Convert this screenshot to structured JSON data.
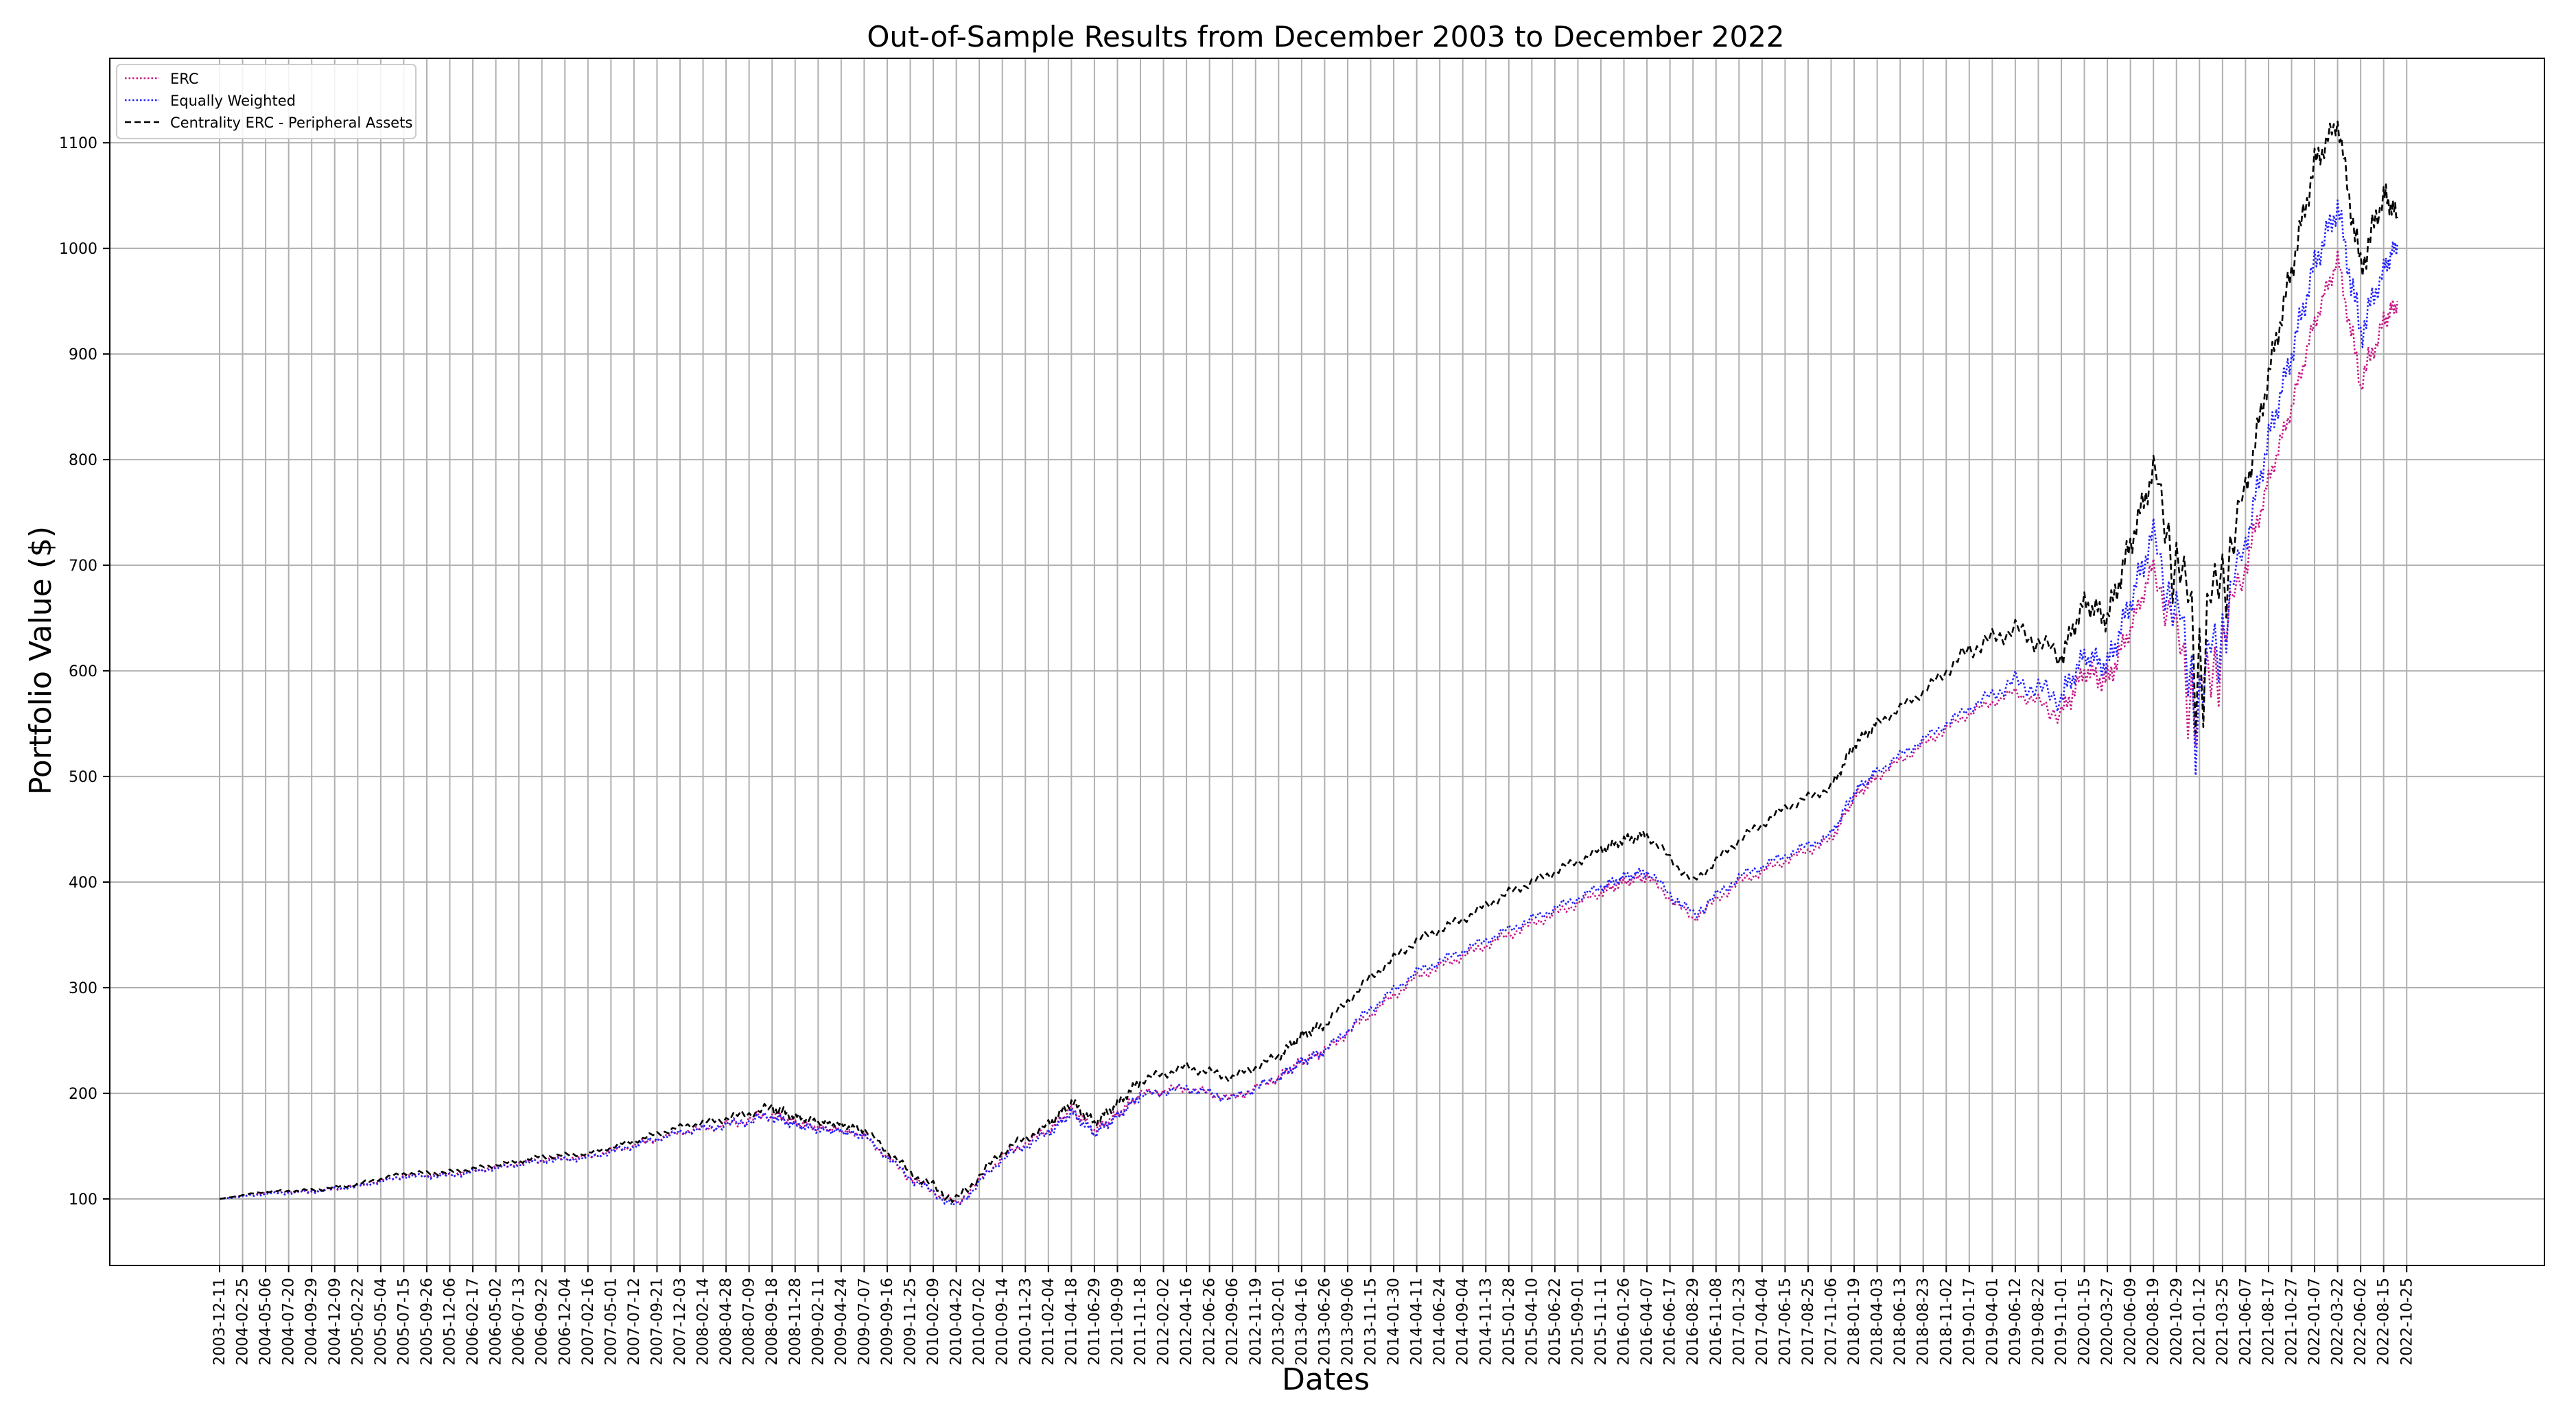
{
  "chart_data": {
    "type": "line",
    "title": "Out-of-Sample Results from December 2003 to December 2022",
    "xlabel": "Dates",
    "ylabel": "Portfolio Value ($)",
    "ylim": [
      37,
      1180
    ],
    "yticks": [
      100,
      200,
      300,
      400,
      500,
      600,
      700,
      800,
      900,
      1000,
      1100
    ],
    "grid": true,
    "legend_position": "top-left",
    "x_tick_labels": [
      "2003-12-11",
      "2004-02-25",
      "2004-05-06",
      "2004-07-20",
      "2004-09-29",
      "2004-12-09",
      "2005-02-22",
      "2005-05-04",
      "2005-07-15",
      "2005-09-26",
      "2005-12-06",
      "2006-02-17",
      "2006-05-02",
      "2006-07-13",
      "2006-09-22",
      "2006-12-04",
      "2007-02-16",
      "2007-05-01",
      "2007-07-12",
      "2007-09-21",
      "2007-12-03",
      "2008-02-14",
      "2008-04-28",
      "2008-07-09",
      "2008-09-18",
      "2008-11-28",
      "2009-02-11",
      "2009-04-24",
      "2009-07-07",
      "2009-09-16",
      "2009-11-25",
      "2010-02-09",
      "2010-04-22",
      "2010-07-02",
      "2010-09-14",
      "2010-11-23",
      "2011-02-04",
      "2011-04-18",
      "2011-06-29",
      "2011-09-09",
      "2011-11-18",
      "2012-02-02",
      "2012-04-16",
      "2012-06-26",
      "2012-09-06",
      "2012-11-19",
      "2013-02-01",
      "2013-04-16",
      "2013-06-26",
      "2013-09-06",
      "2013-11-15",
      "2014-01-30",
      "2014-04-11",
      "2014-06-24",
      "2014-09-04",
      "2014-11-13",
      "2015-01-28",
      "2015-04-10",
      "2015-06-22",
      "2015-09-01",
      "2015-11-11",
      "2016-01-26",
      "2016-04-07",
      "2016-06-17",
      "2016-08-29",
      "2016-11-08",
      "2017-01-23",
      "2017-04-04",
      "2017-06-15",
      "2017-08-25",
      "2017-11-06",
      "2018-01-19",
      "2018-04-03",
      "2018-06-13",
      "2018-08-23",
      "2018-11-02",
      "2019-01-17",
      "2019-04-01",
      "2019-06-12",
      "2019-08-22",
      "2019-11-01",
      "2020-01-15",
      "2020-03-27",
      "2020-06-09",
      "2020-08-19",
      "2020-10-29",
      "2021-01-12",
      "2021-03-25",
      "2021-06-07",
      "2021-08-17",
      "2021-10-27",
      "2022-01-07",
      "2022-03-22",
      "2022-06-02",
      "2022-08-15",
      "2022-10-25"
    ],
    "x_index_range": [
      0,
      94.6
    ],
    "x_index": [
      0,
      2,
      4,
      6,
      8,
      10,
      12,
      14,
      16,
      18,
      20,
      22,
      24,
      25,
      26,
      27,
      28,
      30,
      32,
      34,
      36,
      37,
      38,
      39,
      40,
      42,
      44,
      46,
      47,
      48,
      50,
      52,
      54,
      56,
      58,
      60,
      61,
      62,
      64,
      66,
      68,
      70,
      71,
      72,
      74,
      76,
      78,
      80,
      81,
      82,
      83,
      84,
      86,
      88,
      89,
      90,
      91,
      92,
      93,
      94,
      94.6
    ],
    "series": [
      {
        "name": "ERC",
        "color": "#c71585",
        "dash": "dotted",
        "values": [
          100,
          106,
          107,
          112,
          122,
          123,
          130,
          137,
          140,
          150,
          163,
          170,
          180,
          172,
          168,
          165,
          160,
          120,
          95,
          140,
          165,
          185,
          165,
          180,
          200,
          205,
          195,
          215,
          230,
          240,
          275,
          310,
          330,
          350,
          370,
          390,
          400,
          405,
          365,
          400,
          420,
          440,
          480,
          500,
          530,
          560,
          580,
          560,
          600,
          590,
          640,
          700,
          580,
          700,
          780,
          850,
          930,
          990,
          870,
          930,
          950
        ],
        "highs": [
          100,
          107,
          109,
          114,
          124,
          126,
          132,
          140,
          142,
          155,
          166,
          175,
          186,
          176,
          171,
          168,
          163,
          124,
          100,
          145,
          170,
          190,
          170,
          185,
          204,
          210,
          200,
          220,
          235,
          245,
          280,
          315,
          335,
          355,
          375,
          395,
          405,
          410,
          370,
          405,
          425,
          445,
          485,
          505,
          535,
          565,
          585,
          570,
          610,
          605,
          650,
          710,
          600,
          715,
          790,
          860,
          940,
          1000,
          890,
          940,
          960
        ],
        "lows": [
          100,
          104,
          105,
          110,
          120,
          120,
          128,
          134,
          137,
          147,
          160,
          165,
          174,
          168,
          164,
          162,
          156,
          115,
          90,
          136,
          160,
          180,
          160,
          175,
          195,
          200,
          190,
          210,
          225,
          235,
          270,
          305,
          325,
          345,
          365,
          385,
          395,
          400,
          360,
          395,
          415,
          435,
          475,
          495,
          525,
          555,
          575,
          545,
          590,
          575,
          630,
          690,
          480,
          685,
          770,
          840,
          920,
          980,
          860,
          920,
          940
        ]
      },
      {
        "name": "Equally Weighted",
        "color": "#1f1fff",
        "dash": "dotted",
        "values": [
          100,
          105,
          107,
          112,
          121,
          122,
          129,
          136,
          139,
          150,
          163,
          170,
          178,
          170,
          166,
          164,
          160,
          120,
          92,
          138,
          162,
          182,
          162,
          178,
          198,
          205,
          195,
          215,
          230,
          240,
          280,
          315,
          335,
          355,
          375,
          395,
          405,
          410,
          370,
          405,
          425,
          445,
          485,
          505,
          535,
          565,
          590,
          575,
          615,
          605,
          665,
          730,
          590,
          720,
          820,
          900,
          985,
          1040,
          920,
          980,
          1005
        ],
        "highs": [
          100,
          106,
          109,
          114,
          123,
          125,
          131,
          139,
          141,
          155,
          166,
          175,
          184,
          174,
          169,
          167,
          163,
          124,
          97,
          143,
          167,
          187,
          167,
          183,
          202,
          210,
          200,
          220,
          235,
          245,
          285,
          320,
          340,
          360,
          380,
          400,
          410,
          415,
          375,
          410,
          430,
          450,
          490,
          510,
          540,
          570,
          600,
          590,
          625,
          620,
          680,
          745,
          610,
          735,
          835,
          915,
          1000,
          1055,
          940,
          990,
          1015
        ],
        "lows": [
          100,
          103,
          105,
          110,
          119,
          119,
          127,
          133,
          136,
          147,
          160,
          165,
          172,
          166,
          162,
          161,
          156,
          115,
          88,
          134,
          157,
          177,
          157,
          173,
          193,
          200,
          190,
          210,
          225,
          235,
          275,
          310,
          330,
          350,
          370,
          390,
          400,
          405,
          360,
          400,
          420,
          440,
          480,
          500,
          530,
          560,
          580,
          560,
          605,
          590,
          650,
          715,
          480,
          705,
          805,
          885,
          970,
          1025,
          900,
          970,
          995
        ]
      },
      {
        "name": "Centrality ERC - Peripheral Assets",
        "color": "#000000",
        "dash": "dashed",
        "values": [
          100,
          107,
          108,
          114,
          124,
          125,
          132,
          140,
          143,
          155,
          168,
          176,
          186,
          178,
          173,
          170,
          166,
          125,
          98,
          145,
          170,
          192,
          172,
          190,
          212,
          225,
          215,
          235,
          255,
          265,
          310,
          345,
          365,
          390,
          410,
          430,
          440,
          445,
          400,
          440,
          470,
          490,
          530,
          550,
          580,
          620,
          640,
          615,
          665,
          650,
          720,
          790,
          640,
          770,
          880,
          980,
          1080,
          1120,
          980,
          1050,
          1030
        ],
        "highs": [
          100,
          108,
          110,
          116,
          126,
          128,
          134,
          143,
          145,
          158,
          171,
          181,
          192,
          182,
          176,
          173,
          169,
          130,
          105,
          150,
          175,
          197,
          177,
          195,
          217,
          230,
          220,
          240,
          260,
          270,
          315,
          350,
          370,
          395,
          415,
          435,
          445,
          450,
          405,
          445,
          475,
          495,
          535,
          555,
          585,
          630,
          650,
          625,
          675,
          665,
          735,
          805,
          660,
          785,
          895,
          995,
          1095,
          1130,
          1000,
          1065,
          1040
        ],
        "lows": [
          100,
          106,
          106,
          112,
          122,
          122,
          130,
          137,
          141,
          152,
          165,
          172,
          180,
          174,
          170,
          167,
          162,
          120,
          92,
          140,
          165,
          187,
          167,
          185,
          207,
          220,
          210,
          230,
          250,
          260,
          305,
          340,
          360,
          385,
          405,
          425,
          435,
          440,
          395,
          435,
          465,
          485,
          525,
          545,
          575,
          610,
          630,
          600,
          655,
          635,
          705,
          775,
          500,
          755,
          865,
          965,
          1065,
          1110,
          960,
          1040,
          1020
        ]
      }
    ]
  }
}
